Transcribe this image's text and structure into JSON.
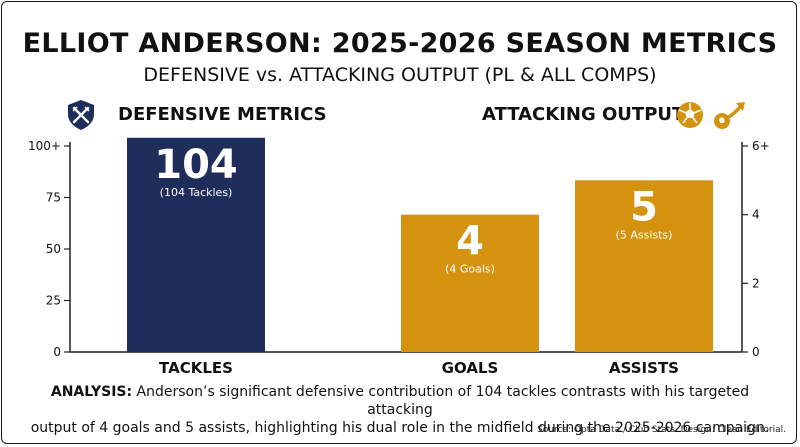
{
  "header": {
    "title": "ELLIOT ANDERSON: 2025-2026 SEASON METRICS",
    "subtitle": "DEFENSIVE vs. ATTACKING OUTPUT (PL & ALL COMPS)"
  },
  "sections": {
    "left_label": "DEFENSIVE METRICS",
    "right_label": "ATTACKING OUTPUT",
    "left_icon": "shield-swords-icon",
    "right_icons": [
      "soccer-ball-icon",
      "ball-trend-arrow-icon"
    ]
  },
  "colors": {
    "defensive": "#1f2d5a",
    "attacking": "#d4920e"
  },
  "chart_data": {
    "type": "bar",
    "categories": [
      "TACKLES",
      "GOALS",
      "ASSISTS"
    ],
    "values": [
      104,
      4,
      5
    ],
    "value_labels": [
      "104",
      "4",
      "5"
    ],
    "sub_labels": [
      "(104 Tackles)",
      "(4 Goals)",
      "(5 Assists)"
    ],
    "axes": {
      "left": {
        "ticks": [
          "0",
          "25",
          "50",
          "75",
          "100+"
        ],
        "tick_values": [
          0,
          25,
          50,
          75,
          100
        ],
        "ylim": [
          0,
          100
        ],
        "applies_to": [
          "TACKLES"
        ]
      },
      "right": {
        "ticks": [
          "0",
          "2",
          "4",
          "6+"
        ],
        "tick_values": [
          0,
          2,
          4,
          6
        ],
        "ylim": [
          0,
          6
        ],
        "applies_to": [
          "GOALS",
          "ASSISTS"
        ]
      }
    },
    "grid": false
  },
  "analysis": {
    "label": "ANALYSIS:",
    "line1": " Anderson’s significant defensive contribution of 104 tackles contrasts with his targeted attacking",
    "line2": "output of 4 goals and 5 assists, highlighting his dual role in the midfield during the 2025-2026 campaign."
  },
  "source": "Source: Opta Data / Club Stats. Design: Clean Editorial."
}
